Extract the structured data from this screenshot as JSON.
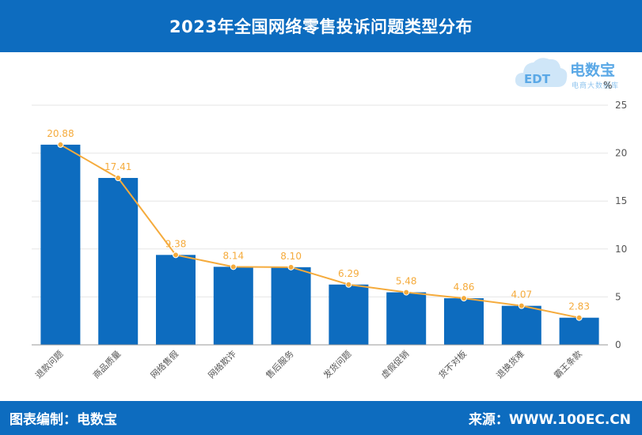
{
  "header": {
    "title": "2023年全国网络零售投诉问题类型分布"
  },
  "footer": {
    "left_text": "图表编制：电数宝",
    "right_text": "来源：WWW.100EC.CN"
  },
  "logo": {
    "name": "电数宝",
    "subtitle": "电商大数据库",
    "mark": "EDT"
  },
  "colors": {
    "bar": "#0d6cbf",
    "line": "#f5ab3c",
    "label": "#f5ab3c",
    "header": "#0d6cbf"
  },
  "chart_data": {
    "type": "bar",
    "categories": [
      "退款问题",
      "商品质量",
      "网络售假",
      "网络欺诈",
      "售后服务",
      "发货问题",
      "虚假促销",
      "货不对板",
      "退换货难",
      "霸王条款"
    ],
    "series": [
      {
        "type": "bar",
        "values": [
          20.88,
          17.41,
          9.38,
          8.14,
          8.1,
          6.29,
          5.48,
          4.86,
          4.07,
          2.83
        ]
      },
      {
        "type": "line",
        "values": [
          20.88,
          17.41,
          9.38,
          8.14,
          8.1,
          6.29,
          5.48,
          4.86,
          4.07,
          2.83
        ]
      }
    ],
    "data_labels": [
      "20.88",
      "17.41",
      "9.38",
      "8.14",
      "8.10",
      "6.29",
      "5.48",
      "4.86",
      "4.07",
      "2.83"
    ],
    "y_unit": "%",
    "yticks": [
      "0",
      "5",
      "10",
      "15",
      "20",
      "25"
    ],
    "ylim": [
      0,
      25
    ],
    "grid": true,
    "axis_side": "right"
  }
}
